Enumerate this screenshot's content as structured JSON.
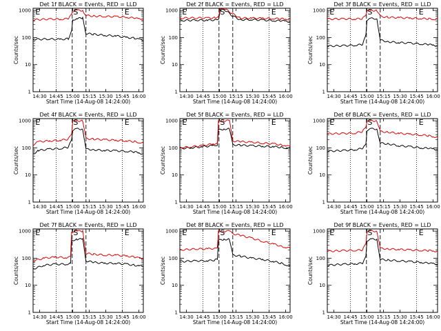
{
  "figure": {
    "time_ticks": [
      "14:30",
      "14:45",
      "15:00",
      "15:15",
      "15:30",
      "15:45",
      "16:00"
    ],
    "y_ticks": [
      "1",
      "10",
      "100",
      "1000"
    ],
    "xlabel": "Start Time (14-Aug-08 14:24:00)",
    "ylabel": "Counts/sec",
    "colors": {
      "events": "#000000",
      "lld": "#dd0000",
      "axis": "#000000"
    },
    "legend": "BLACK = Events, RED = LLD"
  },
  "chart_data": [
    {
      "type": "line",
      "title": "Det 1f BLACK = Events, RED = LLD",
      "xlabel": "Start Time (14-Aug-08 14:24:00)",
      "ylabel": "Counts/sec",
      "xlim_minutes": [
        0,
        100
      ],
      "ylim": [
        1,
        1200
      ],
      "yscale": "log",
      "markers": [
        "E",
        "S",
        "E"
      ],
      "series": [
        {
          "name": "Events",
          "color": "#000000",
          "x": [
            0,
            15,
            25,
            32,
            35,
            36,
            40,
            45,
            48,
            55,
            65,
            75,
            85,
            92,
            96,
            100
          ],
          "y": [
            85,
            88,
            85,
            90,
            170,
            450,
            500,
            520,
            140,
            132,
            120,
            115,
            100,
            95,
            85,
            80
          ]
        },
        {
          "name": "LLD",
          "color": "#dd0000",
          "x": [
            0,
            15,
            25,
            32,
            35,
            36,
            40,
            45,
            48,
            55,
            65,
            75,
            85,
            92,
            96,
            100
          ],
          "y": [
            450,
            480,
            470,
            500,
            700,
            950,
            1000,
            1000,
            650,
            620,
            600,
            590,
            560,
            520,
            480,
            470
          ]
        }
      ]
    },
    {
      "type": "line",
      "title": "Det 2f BLACK = Events, RED = LLD",
      "xlabel": "Start Time (14-Aug-08 14:24:00)",
      "ylabel": "Counts/sec",
      "xlim_minutes": [
        0,
        100
      ],
      "ylim": [
        1,
        1200
      ],
      "yscale": "log",
      "markers": [
        "E",
        "S",
        "E"
      ],
      "series": [
        {
          "name": "Events",
          "color": "#000000",
          "x": [
            0,
            15,
            25,
            32,
            35,
            37,
            40,
            48,
            55,
            65,
            75,
            85,
            92,
            96,
            100
          ],
          "y": [
            420,
            440,
            430,
            450,
            500,
            1100,
            1100,
            620,
            450,
            460,
            440,
            420,
            410,
            400,
            380
          ]
        },
        {
          "name": "LLD",
          "color": "#dd0000",
          "x": [
            0,
            15,
            25,
            32,
            35,
            37,
            40,
            48,
            55,
            65,
            75,
            85,
            92,
            96,
            100
          ],
          "y": [
            520,
            530,
            520,
            540,
            600,
            1200,
            1200,
            750,
            520,
            520,
            510,
            500,
            490,
            480,
            470
          ]
        }
      ]
    },
    {
      "type": "line",
      "title": "Det 3f BLACK = Events, RED = LLD",
      "xlabel": "Start Time (14-Aug-08 14:24:00)",
      "ylabel": "Counts/sec",
      "xlim_minutes": [
        0,
        100
      ],
      "ylim": [
        1,
        1200
      ],
      "yscale": "log",
      "markers": [
        "E",
        "S",
        "E"
      ],
      "series": [
        {
          "name": "Events",
          "color": "#000000",
          "x": [
            0,
            15,
            25,
            32,
            35,
            36,
            40,
            45,
            48,
            55,
            65,
            75,
            85,
            92,
            96,
            100
          ],
          "y": [
            48,
            50,
            52,
            55,
            120,
            450,
            500,
            500,
            80,
            70,
            65,
            62,
            58,
            55,
            52,
            50
          ]
        },
        {
          "name": "LLD",
          "color": "#dd0000",
          "x": [
            0,
            15,
            25,
            32,
            35,
            36,
            40,
            45,
            48,
            55,
            65,
            75,
            85,
            92,
            96,
            100
          ],
          "y": [
            480,
            490,
            480,
            500,
            700,
            950,
            1000,
            1000,
            600,
            560,
            540,
            520,
            500,
            490,
            480,
            470
          ]
        }
      ]
    },
    {
      "type": "line",
      "title": "Det 4f BLACK = Events, RED = LLD",
      "xlabel": "Start Time (14-Aug-08 14:24:00)",
      "ylabel": "Counts/sec",
      "xlim_minutes": [
        0,
        100
      ],
      "ylim": [
        1,
        1200
      ],
      "yscale": "log",
      "markers": [
        "E",
        "S",
        "E"
      ],
      "series": [
        {
          "name": "Events",
          "color": "#000000",
          "x": [
            0,
            5,
            15,
            25,
            32,
            35,
            36,
            40,
            45,
            48,
            55,
            65,
            75,
            85,
            92,
            96,
            100
          ],
          "y": [
            60,
            80,
            90,
            95,
            105,
            200,
            450,
            500,
            500,
            90,
            85,
            80,
            78,
            75,
            70,
            65,
            60
          ]
        },
        {
          "name": "LLD",
          "color": "#dd0000",
          "x": [
            0,
            5,
            15,
            25,
            32,
            35,
            36,
            40,
            45,
            48,
            55,
            65,
            75,
            85,
            92,
            96,
            100
          ],
          "y": [
            130,
            170,
            180,
            190,
            210,
            350,
            950,
            1000,
            1000,
            220,
            210,
            200,
            190,
            180,
            170,
            160,
            150
          ]
        }
      ]
    },
    {
      "type": "line",
      "title": "Det 5f BLACK = Events, RED = LLD",
      "xlabel": "Start Time (14-Aug-08 14:24:00)",
      "ylabel": "Counts/sec",
      "xlim_minutes": [
        0,
        100
      ],
      "ylim": [
        1,
        1200
      ],
      "yscale": "log",
      "markers": [
        "E",
        "S",
        "E"
      ],
      "series": [
        {
          "name": "Events",
          "color": "#000000",
          "x": [
            0,
            10,
            20,
            30,
            34,
            35,
            40,
            45,
            48,
            55,
            65,
            75,
            85,
            92,
            96,
            100
          ],
          "y": [
            95,
            100,
            110,
            120,
            130,
            450,
            500,
            500,
            130,
            125,
            120,
            115,
            110,
            105,
            100,
            95
          ]
        },
        {
          "name": "LLD",
          "color": "#dd0000",
          "x": [
            0,
            10,
            20,
            30,
            34,
            35,
            40,
            45,
            48,
            55,
            65,
            75,
            85,
            92,
            96,
            100
          ],
          "y": [
            100,
            110,
            120,
            140,
            150,
            950,
            1000,
            1000,
            180,
            170,
            160,
            150,
            140,
            130,
            120,
            110
          ]
        }
      ]
    },
    {
      "type": "line",
      "title": "Det 6f BLACK = Events, RED = LLD",
      "xlabel": "Start Time (14-Aug-08 14:24:00)",
      "ylabel": "Counts/sec",
      "xlim_minutes": [
        0,
        100
      ],
      "ylim": [
        1,
        1200
      ],
      "yscale": "log",
      "markers": [
        "E",
        "S",
        "E"
      ],
      "series": [
        {
          "name": "Events",
          "color": "#000000",
          "x": [
            0,
            15,
            25,
            32,
            35,
            36,
            40,
            45,
            48,
            55,
            65,
            75,
            85,
            92,
            96,
            100
          ],
          "y": [
            75,
            80,
            85,
            95,
            130,
            450,
            500,
            500,
            150,
            140,
            120,
            110,
            100,
            95,
            90,
            85
          ]
        },
        {
          "name": "LLD",
          "color": "#dd0000",
          "x": [
            0,
            15,
            25,
            32,
            35,
            36,
            40,
            45,
            48,
            55,
            65,
            75,
            85,
            92,
            96,
            100
          ],
          "y": [
            330,
            340,
            350,
            400,
            600,
            950,
            1000,
            1000,
            400,
            380,
            340,
            320,
            300,
            280,
            260,
            250
          ]
        }
      ]
    },
    {
      "type": "line",
      "title": "Det 7f BLACK = Events, RED = LLD",
      "xlabel": "Start Time (14-Aug-08 14:24:00)",
      "ylabel": "Counts/sec",
      "xlim_minutes": [
        0,
        100
      ],
      "ylim": [
        1,
        1200
      ],
      "yscale": "log",
      "markers": [
        "E",
        "S",
        "E"
      ],
      "series": [
        {
          "name": "Events",
          "color": "#000000",
          "x": [
            0,
            10,
            20,
            30,
            34,
            35,
            40,
            45,
            48,
            55,
            65,
            75,
            85,
            92,
            96,
            100
          ],
          "y": [
            40,
            55,
            60,
            60,
            65,
            450,
            500,
            500,
            80,
            70,
            65,
            65,
            60,
            55,
            52,
            50
          ]
        },
        {
          "name": "LLD",
          "color": "#dd0000",
          "x": [
            0,
            10,
            20,
            30,
            34,
            35,
            40,
            45,
            48,
            55,
            65,
            75,
            85,
            92,
            96,
            100
          ],
          "y": [
            80,
            100,
            110,
            105,
            110,
            950,
            1000,
            1000,
            150,
            140,
            130,
            130,
            120,
            110,
            100,
            95
          ]
        }
      ]
    },
    {
      "type": "line",
      "title": "Det 8f BLACK = Events, RED = LLD",
      "xlabel": "Start Time (14-Aug-08 14:24:00)",
      "ylabel": "Counts/sec",
      "xlim_minutes": [
        0,
        100
      ],
      "ylim": [
        1,
        1200
      ],
      "yscale": "log",
      "markers": [
        "E",
        "S",
        "E"
      ],
      "series": [
        {
          "name": "Events",
          "color": "#000000",
          "x": [
            0,
            15,
            25,
            32,
            34,
            35,
            40,
            45,
            48,
            55,
            65,
            75,
            85,
            92,
            96,
            100
          ],
          "y": [
            75,
            80,
            80,
            85,
            95,
            450,
            500,
            500,
            130,
            120,
            100,
            90,
            75,
            65,
            58,
            50
          ]
        },
        {
          "name": "LLD",
          "color": "#dd0000",
          "x": [
            0,
            15,
            25,
            32,
            34,
            35,
            40,
            45,
            48,
            55,
            65,
            75,
            85,
            92,
            96,
            100
          ],
          "y": [
            200,
            220,
            220,
            230,
            260,
            950,
            1000,
            1000,
            800,
            700,
            550,
            420,
            330,
            280,
            250,
            230
          ]
        }
      ]
    },
    {
      "type": "line",
      "title": "Det 9f BLACK = Events, RED = LLD",
      "xlabel": "Start Time (14-Aug-08 14:24:00)",
      "ylabel": "Counts/sec",
      "xlim_minutes": [
        0,
        100
      ],
      "ylim": [
        1,
        1200
      ],
      "yscale": "log",
      "markers": [
        "E",
        "S",
        "E"
      ],
      "series": [
        {
          "name": "Events",
          "color": "#000000",
          "x": [
            0,
            15,
            25,
            32,
            35,
            36,
            40,
            45,
            48,
            55,
            65,
            75,
            85,
            92,
            96,
            100
          ],
          "y": [
            55,
            60,
            62,
            65,
            110,
            450,
            500,
            500,
            90,
            85,
            80,
            75,
            70,
            65,
            62,
            60
          ]
        },
        {
          "name": "LLD",
          "color": "#dd0000",
          "x": [
            0,
            15,
            25,
            32,
            35,
            36,
            40,
            45,
            48,
            55,
            65,
            75,
            85,
            92,
            96,
            100
          ],
          "y": [
            180,
            190,
            195,
            200,
            350,
            950,
            1000,
            1000,
            230,
            220,
            210,
            200,
            195,
            190,
            185,
            180
          ]
        }
      ]
    }
  ]
}
